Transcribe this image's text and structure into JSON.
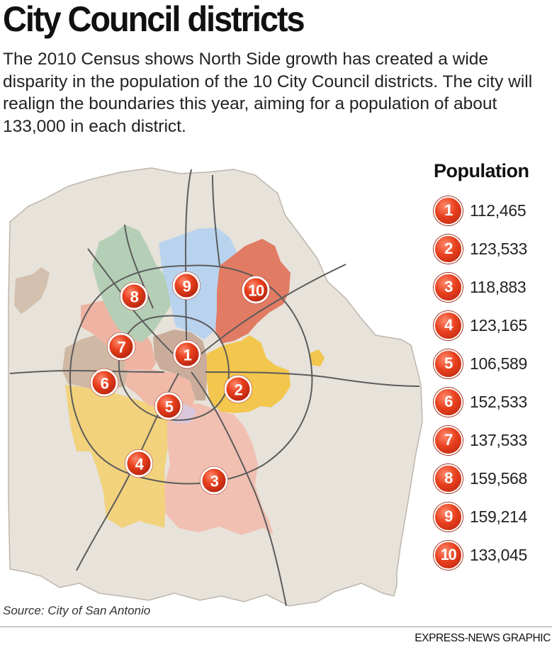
{
  "header": {
    "title": "City Council districts",
    "intro": "The 2010 Census shows North Side growth has created a wide disparity in the population of the 10 City Council districts. The city will realign the boundaries this year, aiming for a population of about 133,000 in each district."
  },
  "legend": {
    "heading": "Population",
    "rows": [
      {
        "district": "1",
        "population": "112,465"
      },
      {
        "district": "2",
        "population": "123,533"
      },
      {
        "district": "3",
        "population": "118,883"
      },
      {
        "district": "4",
        "population": "123,165"
      },
      {
        "district": "5",
        "population": "106,589"
      },
      {
        "district": "6",
        "population": "152,533"
      },
      {
        "district": "7",
        "population": "137,533"
      },
      {
        "district": "8",
        "population": "159,568"
      },
      {
        "district": "9",
        "population": "159,214"
      },
      {
        "district": "10",
        "population": "133,045"
      }
    ]
  },
  "map": {
    "markers": [
      "1",
      "2",
      "3",
      "4",
      "5",
      "6",
      "7",
      "8",
      "9",
      "10"
    ],
    "colors": {
      "county": "#e7e2da",
      "district1": "#c9ad9a",
      "district2": "#f3c64e",
      "district3": "#f1c0b2",
      "district4": "#f2d27c",
      "district5": "#f0b9a8",
      "district6": "#cfb9a4",
      "district7": "#eeb3a2",
      "district8": "#b5cfb6",
      "district9": "#b9d3ef",
      "district10": "#e27b63",
      "marker": "#e8401e"
    }
  },
  "footer": {
    "source": "Source: City of San Antonio",
    "credit": "EXPRESS-NEWS GRAPHIC"
  }
}
